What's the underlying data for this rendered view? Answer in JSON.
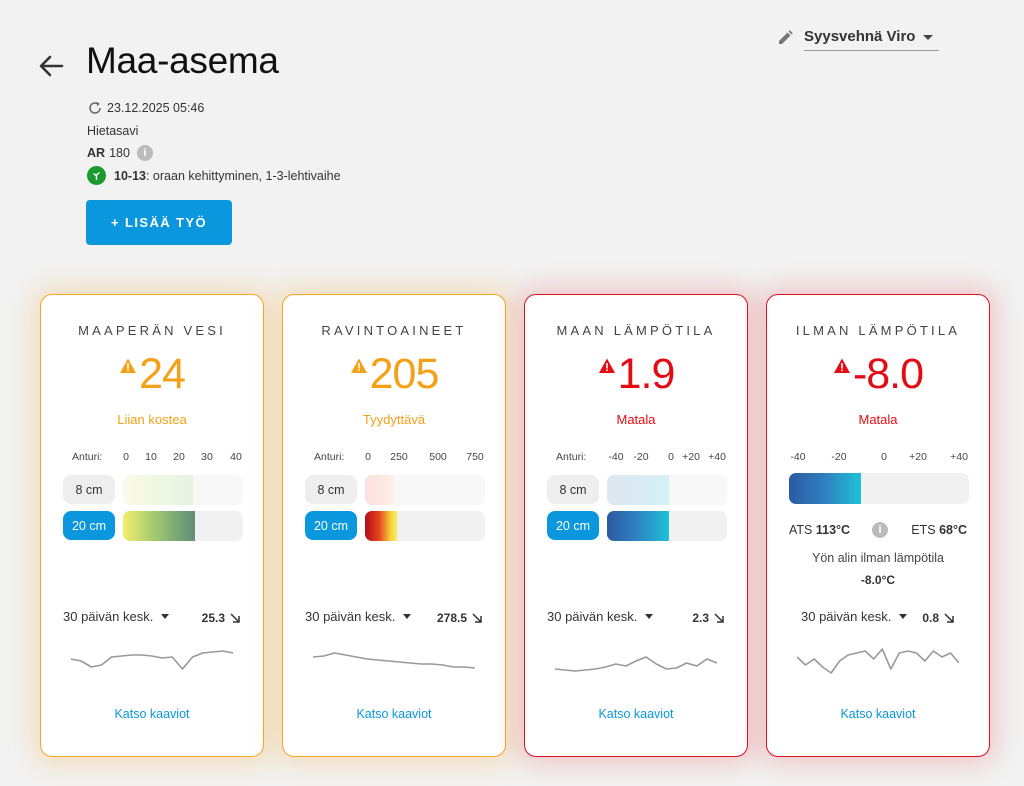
{
  "header": {
    "title": "Maa-asema",
    "crop": "Syysvehnä Viro",
    "updated": "23.12.2025 05:46",
    "soil_type": "Hietasavi",
    "ar_label": "AR",
    "ar_value": "180",
    "stage_code": "10-13",
    "stage_desc": ": oraan kehittyminen, 1-3-lehtivaihe",
    "add_work_label": "+ LISÄÄ TYÖ"
  },
  "icons": [
    "arrow-left-icon",
    "pencil-icon",
    "refresh-icon",
    "info-icon",
    "plant-stage-icon",
    "warning-triangle-icon",
    "trend-down-arrow-icon"
  ],
  "colors": {
    "accent": "#0a97dd",
    "warning": "#f5a017",
    "danger": "#e40c14"
  },
  "cards": [
    {
      "title": "MAAPERÄN VESI",
      "value": "24",
      "status": "Liian kostea",
      "severity": "warning",
      "scale_label": "Anturi:",
      "ticks": [
        "0",
        "10",
        "20",
        "30",
        "40"
      ],
      "depths": [
        {
          "label": "8 cm",
          "active": false,
          "value": 30
        },
        {
          "label": "20 cm",
          "active": true,
          "value": 30.5
        }
      ],
      "avg_label": "30 päivän kesk.",
      "avg_value": "25.3",
      "link": "Katso kaaviot",
      "sparkline": [
        20,
        22,
        28,
        26,
        18,
        17,
        16,
        16,
        17,
        19,
        18,
        30,
        18,
        14,
        13,
        12,
        14
      ]
    },
    {
      "title": "RAVINTOAINEET",
      "value": "205",
      "status": "Tyydyttävä",
      "severity": "warning",
      "scale_label": "Anturi:",
      "ticks": [
        "0",
        "250",
        "500",
        "750"
      ],
      "depths": [
        {
          "label": "8 cm",
          "active": false,
          "value": 100
        },
        {
          "label": "20 cm",
          "active": true,
          "value": 110
        }
      ],
      "avg_label": "30 päivän kesk.",
      "avg_value": "278.5",
      "link": "Katso kaaviot",
      "sparkline": [
        18,
        17,
        14,
        16,
        18,
        20,
        21,
        22,
        23,
        24,
        25,
        25,
        26,
        28,
        28,
        29
      ]
    },
    {
      "title": "MAAN LÄMPÖTILA",
      "value": "1.9",
      "status": "Matala",
      "severity": "danger",
      "scale_label": "Anturi:",
      "ticks": [
        "-40",
        "-20",
        "0",
        "+20",
        "+40"
      ],
      "depths": [
        {
          "label": "8 cm",
          "active": false,
          "value": 0
        },
        {
          "label": "20 cm",
          "active": true,
          "value": 0
        }
      ],
      "avg_label": "30 päivän kesk.",
      "avg_value": "2.3",
      "link": "Katso kaaviot",
      "sparkline": [
        30,
        31,
        32,
        31,
        30,
        28,
        25,
        27,
        22,
        18,
        25,
        30,
        29,
        24,
        27,
        20,
        24
      ]
    },
    {
      "title": "ILMAN LÄMPÖTILA",
      "value": "-8.0",
      "status": "Matala",
      "severity": "danger",
      "ticks": [
        "-40",
        "-20",
        "0",
        "+20",
        "+40"
      ],
      "bar_value": -20,
      "ats_label": "ATS",
      "ats_value": "113°C",
      "ets_label": "ETS",
      "ets_value": "68°C",
      "night_label": "Yön alin ilman lämpötila",
      "night_value": "-8.0°C",
      "avg_label": "30 päivän kesk.",
      "avg_value": "0.8",
      "link": "Katso kaaviot",
      "sparkline": [
        18,
        26,
        20,
        28,
        34,
        22,
        16,
        14,
        12,
        20,
        10,
        30,
        14,
        12,
        14,
        22,
        12,
        18,
        14,
        24
      ]
    }
  ]
}
